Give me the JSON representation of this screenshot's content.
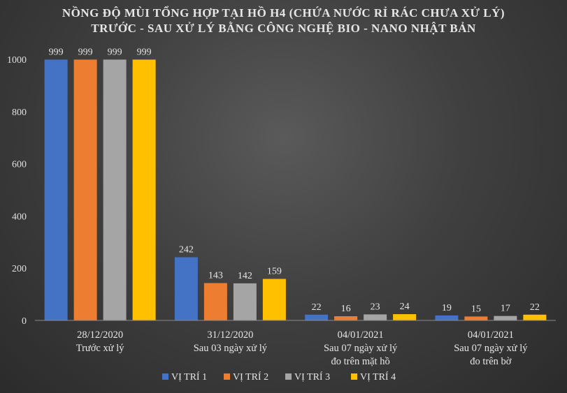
{
  "chart_data": {
    "type": "bar",
    "title_lines": [
      "NỒNG ĐỘ MÙI TỔNG HỢP TẠI HỒ H4 (CHỨA NƯỚC RỈ RÁC CHƯA XỬ LÝ)",
      "TRƯỚC - SAU XỬ LÝ BẰNG CÔNG NGHỆ BIO - NANO NHẬT BẢN"
    ],
    "categories": [
      [
        "28/12/2020",
        "Trước xử lý"
      ],
      [
        "31/12/2020",
        "Sau 03 ngày xử lý"
      ],
      [
        "04/01/2021",
        "Sau 07 ngày xử lý",
        "đo trên mặt hồ"
      ],
      [
        "04/01/2021",
        "Sau 07 ngày xử lý",
        "đo trên bờ"
      ]
    ],
    "series": [
      {
        "name": "VỊ TRÍ 1",
        "color": "#4472c4",
        "values": [
          999,
          242,
          22,
          19
        ]
      },
      {
        "name": "VỊ TRÍ 2",
        "color": "#ed7d31",
        "values": [
          999,
          143,
          16,
          15
        ]
      },
      {
        "name": "VỊ TRÍ 3",
        "color": "#a5a5a5",
        "values": [
          999,
          142,
          23,
          17
        ]
      },
      {
        "name": "VỊ TRÍ 4",
        "color": "#ffc000",
        "values": [
          999,
          159,
          24,
          22
        ]
      }
    ],
    "y_ticks": [
      "0",
      "200",
      "400",
      "600",
      "800",
      "1000"
    ],
    "ylim": [
      0,
      1000
    ],
    "legend_position": "bottom",
    "grid": false
  }
}
